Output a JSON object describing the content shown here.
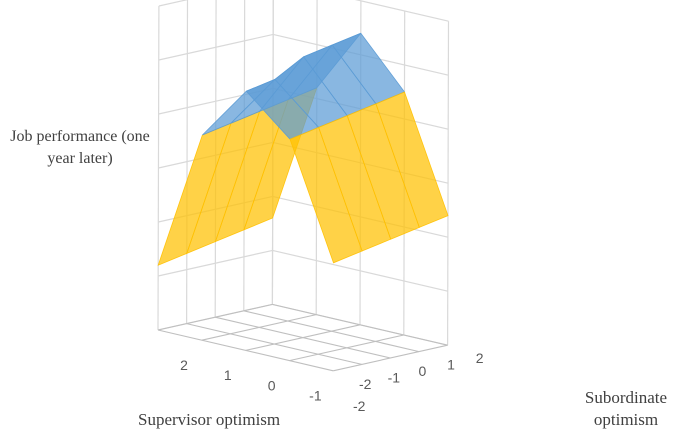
{
  "chart_data": {
    "type": "surface",
    "zlabel": "Job performance (one year later)",
    "xlabel": "Supervisor optimism",
    "ylabel": "Subordinate optimism",
    "x": [
      2,
      1,
      0,
      -1,
      -2
    ],
    "y": [
      -2,
      -1,
      0,
      1,
      2
    ],
    "x_tick_labels": [
      "2",
      "1",
      "0",
      "-1",
      "-2"
    ],
    "y_tick_labels": [
      "-2",
      "-1",
      "0",
      "1",
      "2"
    ],
    "z_values": [
      [
        1.2,
        3.8,
        4.8,
        4.1,
        2.0
      ],
      [
        1.3,
        3.9,
        4.9,
        4.2,
        2.1
      ],
      [
        1.4,
        4.0,
        5.2,
        4.3,
        2.2
      ],
      [
        1.5,
        4.1,
        5.3,
        4.4,
        2.3
      ],
      [
        1.6,
        4.2,
        5.4,
        4.5,
        2.4
      ]
    ],
    "grid": true,
    "colors": {
      "wall_grid": "#d9d9d9",
      "floor_grid": "#d9d9d9",
      "band_low": "#333333",
      "band_mid": "#ffc000",
      "band_high": "#5b9bd5",
      "band_top": "#70ad47"
    }
  }
}
